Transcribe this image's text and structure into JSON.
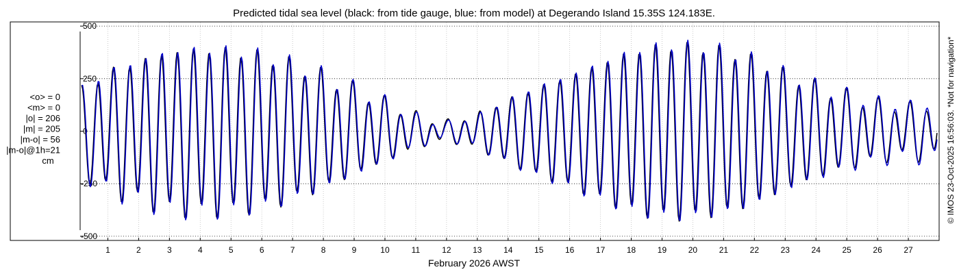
{
  "chart_data": {
    "type": "line",
    "title": "Predicted tidal sea level (black: from tide gauge, blue: from model) at Degerando Island 15.35S 124.183E.",
    "xlabel": "February 2026 AWST",
    "ylabel": "",
    "x_unit": "day of February 2026",
    "xlim": [
      0.1,
      28.0
    ],
    "ylim": [
      -520,
      520
    ],
    "x_ticks": [
      1,
      2,
      3,
      4,
      5,
      6,
      7,
      8,
      9,
      10,
      11,
      12,
      13,
      14,
      15,
      16,
      17,
      18,
      19,
      20,
      21,
      22,
      23,
      24,
      25,
      26,
      27
    ],
    "x_tick_labels": [
      "1",
      "2",
      "3",
      "4",
      "5",
      "6",
      "7",
      "8",
      "9",
      "10",
      "11",
      "12",
      "13",
      "14",
      "15",
      "16",
      "17",
      "18",
      "19",
      "20",
      "21",
      "22",
      "23",
      "24",
      "25",
      "26",
      "27"
    ],
    "y_ticks": [
      500,
      250,
      0,
      -250,
      -500
    ],
    "y_tick_labels": [
      "500",
      "250",
      "0",
      "-250",
      "-500"
    ],
    "grid": true,
    "legend": "none",
    "series": [
      {
        "name": "from tide gauge",
        "color": "#000000",
        "sample_step_days": 0.03125,
        "x_start": 0.15,
        "amplitude_envelope": {
          "x": [
            0.15,
            1.0,
            2.0,
            3.0,
            4.0,
            5.0,
            6.0,
            7.0,
            8.0,
            9.0,
            10.0,
            11.0,
            12.0,
            13.0,
            14.0,
            15.0,
            16.0,
            17.0,
            18.0,
            19.0,
            20.0,
            21.0,
            22.0,
            23.0,
            24.0,
            25.0,
            26.0,
            27.0,
            27.95
          ],
          "semidiurnal_cm": [
            195,
            280,
            330,
            375,
            385,
            380,
            360,
            320,
            265,
            200,
            140,
            75,
            40,
            80,
            150,
            210,
            260,
            320,
            375,
            405,
            405,
            385,
            340,
            275,
            215,
            170,
            130,
            115,
            120
          ],
          "diurnal_cm": [
            40,
            40,
            40,
            40,
            40,
            40,
            40,
            40,
            40,
            40,
            30,
            25,
            20,
            15,
            12,
            12,
            15,
            20,
            25,
            30,
            30,
            30,
            30,
            30,
            35,
            40,
            40,
            40,
            40
          ]
        }
      },
      {
        "name": "from model",
        "color": "#0000cc",
        "sample_step_days": 0.03125,
        "x_start": 0.15,
        "amplitude_envelope": {
          "x": [
            0.15,
            1.0,
            2.0,
            3.0,
            4.0,
            5.0,
            6.0,
            7.0,
            8.0,
            9.0,
            10.0,
            11.0,
            12.0,
            13.0,
            14.0,
            15.0,
            16.0,
            17.0,
            18.0,
            19.0,
            20.0,
            21.0,
            22.0,
            23.0,
            24.0,
            25.0,
            26.0,
            27.0,
            27.95
          ],
          "semidiurnal_cm": [
            200,
            285,
            335,
            380,
            390,
            385,
            365,
            325,
            270,
            205,
            145,
            70,
            35,
            75,
            150,
            215,
            265,
            325,
            380,
            410,
            410,
            390,
            345,
            280,
            220,
            175,
            140,
            125,
            130
          ],
          "diurnal_cm": [
            40,
            40,
            40,
            40,
            40,
            40,
            40,
            40,
            40,
            40,
            30,
            25,
            20,
            15,
            12,
            12,
            15,
            20,
            25,
            30,
            30,
            30,
            30,
            30,
            35,
            40,
            40,
            40,
            40
          ]
        }
      }
    ],
    "stats": {
      "lines": [
        "<o> = 0",
        "<m> = 0",
        "|o| = 206",
        "|m| = 205",
        "|m-o| = 56",
        "|m-o|@1h=21",
        "cm"
      ]
    },
    "credit": "© IMOS 23-Oct-2025 16:56:03. *Not for navigation*"
  }
}
